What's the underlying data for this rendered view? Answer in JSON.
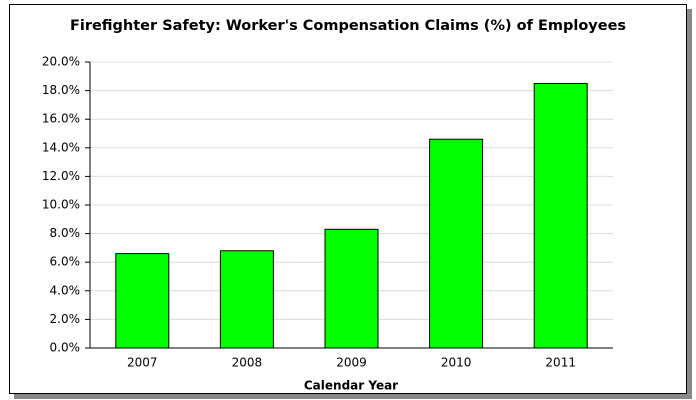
{
  "chart_data": {
    "type": "bar",
    "title": "Firefighter Safety:  Worker's Compensation Claims (%)  of Employees",
    "x_label": "Calendar Year",
    "categories": [
      "2007",
      "2008",
      "2009",
      "2010",
      "2011"
    ],
    "values": [
      6.6,
      6.8,
      8.3,
      14.6,
      18.5
    ],
    "color": "#00ff00",
    "ylim": [
      0,
      20
    ],
    "yticks": [
      {
        "value": 0,
        "label": "0.0%"
      },
      {
        "value": 2,
        "label": "2.0%"
      },
      {
        "value": 4,
        "label": "4.0%"
      },
      {
        "value": 6,
        "label": "6.0%"
      },
      {
        "value": 8,
        "label": "8.0%"
      },
      {
        "value": 10,
        "label": "10.0%"
      },
      {
        "value": 12,
        "label": "12.0%"
      },
      {
        "value": 14,
        "label": "14.0%"
      },
      {
        "value": 16,
        "label": "16.0%"
      },
      {
        "value": 18,
        "label": "18.0%"
      },
      {
        "value": 20,
        "label": "20.0%"
      }
    ],
    "grid": true
  }
}
